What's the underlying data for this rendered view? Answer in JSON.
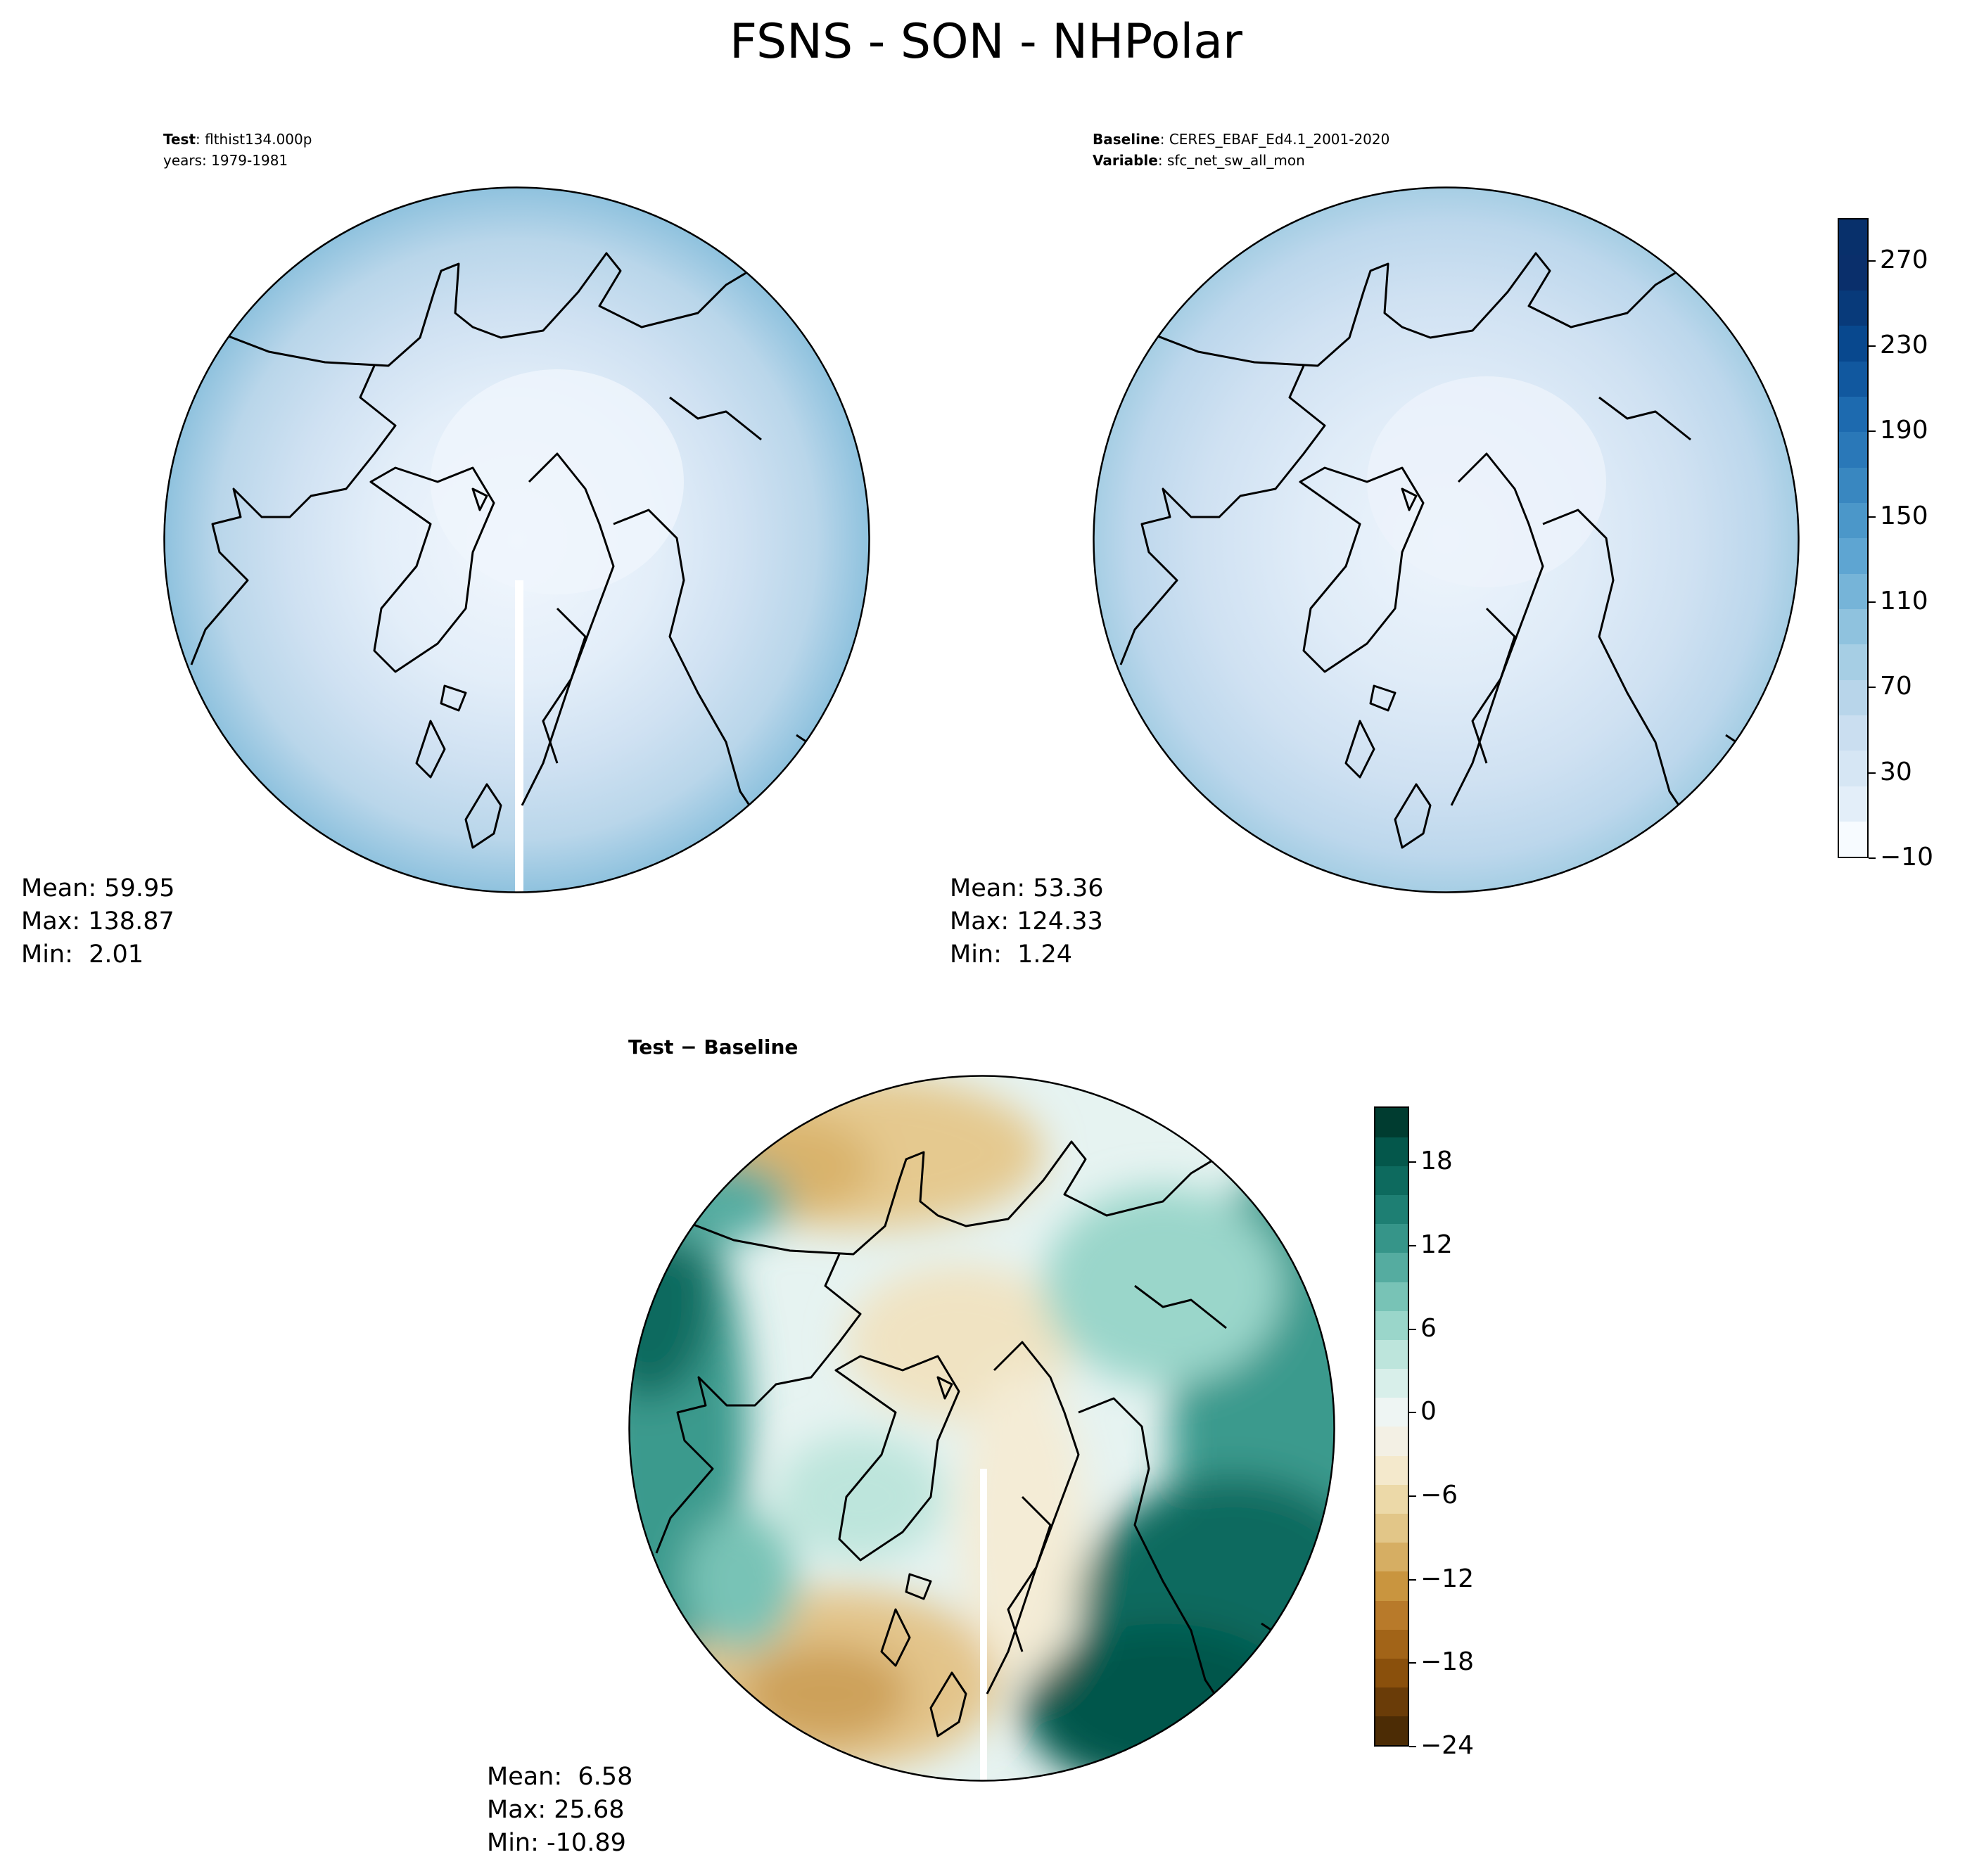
{
  "suptitle": "FSNS - SON - NHPolar",
  "panels": {
    "test": {
      "label_bold": "Test",
      "label_text": ": flthist134.000p",
      "line2": "years: 1979-1981",
      "stats": [
        "Mean: 59.95",
        "Max: 138.87",
        "Min:  2.01"
      ]
    },
    "baseline": {
      "label_bold": "Baseline",
      "label_text": ": CERES_EBAF_Ed4.1_2001-2020",
      "line2_bold": "Variable",
      "line2_text": ": sfc_net_sw_all_mon",
      "stats": [
        "Mean: 53.36",
        "Max: 124.33",
        "Min:  1.24"
      ]
    },
    "diff": {
      "title": "Test − Baseline",
      "stats": [
        "Mean:  6.58",
        "Max: 25.68",
        "Min: -10.89"
      ]
    }
  },
  "colorbars": {
    "main": {
      "ticks": [
        "270",
        "230",
        "190",
        "150",
        "110",
        "70",
        "30",
        "−10"
      ],
      "tick_values": [
        270,
        230,
        190,
        150,
        110,
        70,
        30,
        -10
      ],
      "range": [
        -10,
        290
      ],
      "colors": [
        "#f7fbff",
        "#e3eef9",
        "#d6e6f4",
        "#cadef0",
        "#b8d5ea",
        "#a6cee4",
        "#8fc2de",
        "#76b4d8",
        "#5ea5d2",
        "#4b97c9",
        "#3987c0",
        "#2a78b8",
        "#1d6aaf",
        "#11589f",
        "#08488e",
        "#083a7a",
        "#0a2f6b",
        "#08306b"
      ]
    },
    "diff": {
      "ticks": [
        "18",
        "12",
        "6",
        "0",
        "−6",
        "−12",
        "−18",
        "−24"
      ],
      "tick_values": [
        18,
        12,
        6,
        0,
        -6,
        -12,
        -18,
        -24
      ],
      "range": [
        -24,
        22
      ],
      "colors": [
        "#4c2c05",
        "#6a3c08",
        "#8a500c",
        "#a26418",
        "#b87a2a",
        "#c9953f",
        "#d6ae63",
        "#e2c688",
        "#ecd9a8",
        "#f4e9cc",
        "#f3f0e4",
        "#eef5f3",
        "#d8efea",
        "#bde5dc",
        "#9ad6ca",
        "#78c3b6",
        "#55aca0",
        "#369589",
        "#1e7f73",
        "#0d6a5e",
        "#04574b",
        "#003c30"
      ]
    }
  },
  "colors": {
    "land_outline": "#000000",
    "map_edge": "#000000"
  }
}
